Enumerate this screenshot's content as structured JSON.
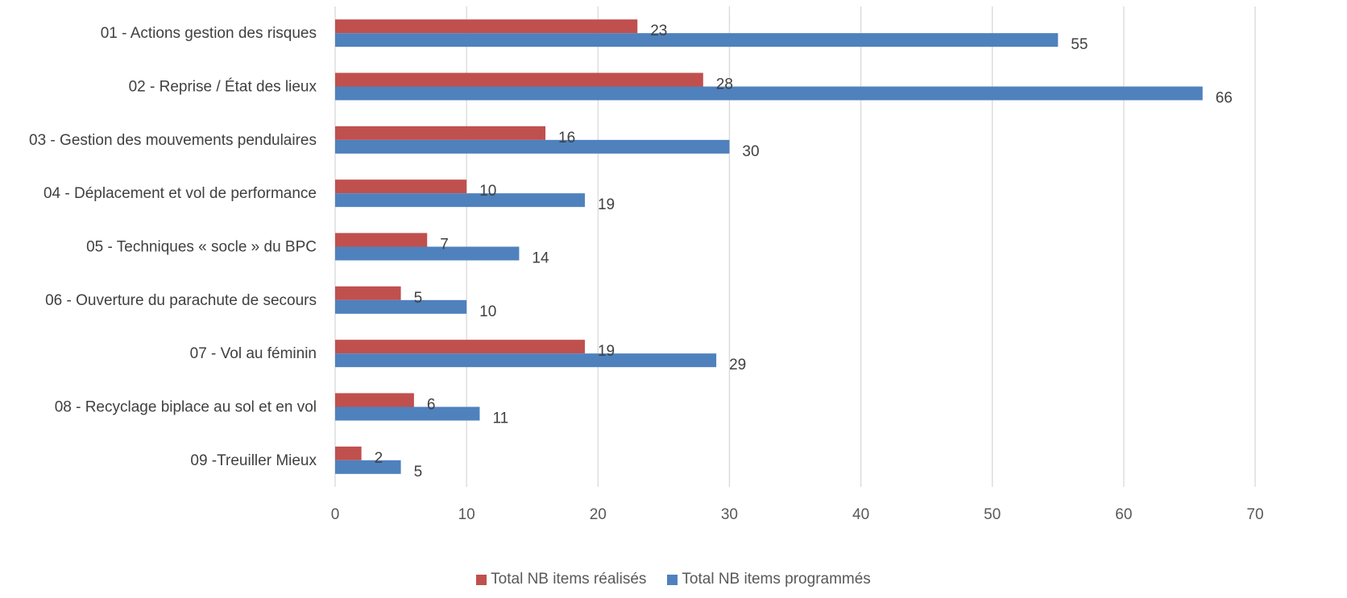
{
  "chart_data": {
    "type": "bar",
    "orientation": "horizontal",
    "categories": [
      "01 - Actions gestion des risques",
      "02 - Reprise / État des lieux",
      "03 - Gestion des mouvements pendulaires",
      "04 - Déplacement et vol de performance",
      "05 - Techniques « socle » du BPC",
      "06 - Ouverture du parachute de secours",
      "07 - Vol au féminin",
      "08 - Recyclage biplace au sol et en vol",
      "09 -Treuiller Mieux"
    ],
    "series": [
      {
        "name": "Total NB items réalisés",
        "color": "#C0504D",
        "values": [
          23,
          28,
          16,
          10,
          7,
          5,
          19,
          6,
          2
        ]
      },
      {
        "name": "Total NB items programmés",
        "color": "#4F81BD",
        "values": [
          55,
          66,
          30,
          19,
          14,
          10,
          29,
          11,
          5
        ]
      }
    ],
    "xlim": [
      0,
      70
    ],
    "xticks": [
      "0",
      "10",
      "20",
      "30",
      "40",
      "50",
      "60",
      "70"
    ],
    "grid": true,
    "legend_position": "bottom"
  }
}
